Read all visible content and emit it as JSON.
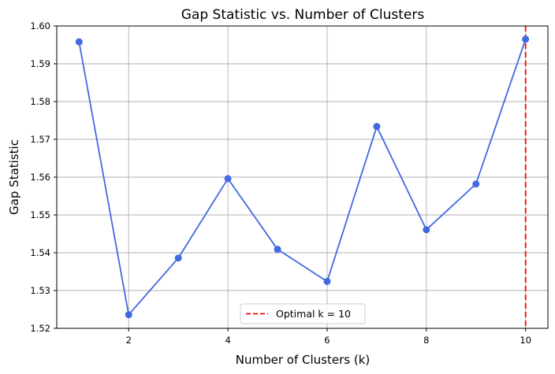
{
  "chart_data": {
    "type": "line",
    "title": "Gap Statistic vs. Number of Clusters",
    "xlabel": "Number of Clusters (k)",
    "ylabel": "Gap Statistic",
    "x": [
      1,
      2,
      3,
      4,
      5,
      6,
      7,
      8,
      9,
      10
    ],
    "series": [
      {
        "values": [
          1.5958,
          1.5236,
          1.5386,
          1.5596,
          1.5409,
          1.5324,
          1.5734,
          1.5461,
          1.5582,
          1.5965
        ],
        "color": "#4169e1",
        "marker": "circle"
      }
    ],
    "xlim": [
      0.55,
      10.45
    ],
    "ylim": [
      1.52,
      1.6
    ],
    "xticks": [
      2,
      4,
      6,
      8,
      10
    ],
    "yticks": [
      1.52,
      1.53,
      1.54,
      1.55,
      1.56,
      1.57,
      1.58,
      1.59,
      1.6
    ],
    "xtick_labels": [
      "2",
      "4",
      "6",
      "8",
      "10"
    ],
    "ytick_labels": [
      "1.52",
      "1.53",
      "1.54",
      "1.55",
      "1.56",
      "1.57",
      "1.58",
      "1.59",
      "1.60"
    ],
    "grid": true,
    "reference_line": {
      "orientation": "vertical",
      "x": 10,
      "color": "#ff0000",
      "style": "dashed"
    },
    "legend": {
      "position": "bottom-center",
      "entries": [
        {
          "label": "Optimal k = 10",
          "color": "#ff0000",
          "style": "dashed"
        }
      ]
    }
  }
}
